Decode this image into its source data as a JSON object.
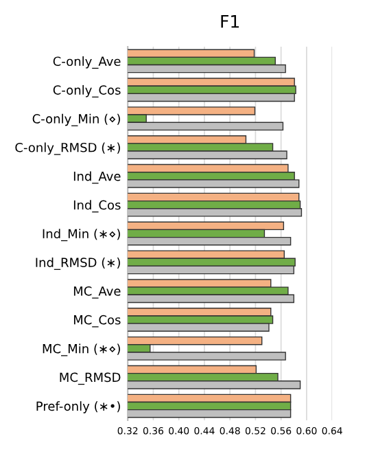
{
  "chart_data": {
    "type": "bar",
    "orientation": "horizontal",
    "title": "F1",
    "categories": [
      "C-only_Ave",
      "C-only_Cos",
      "C-only_Min (⋄)",
      "C-only_RMSD (∗)",
      "Ind_Ave",
      "Ind_Cos",
      "Ind_Min (∗⋄)",
      "Ind_RMSD (∗)",
      "MC_Ave",
      "MC_Cos",
      "MC_Min (∗⋄)",
      "MC_RMSD",
      "Pref-only (∗•)"
    ],
    "series": [
      {
        "color": "#f4b183",
        "values": [
          0.518,
          0.581,
          0.519,
          0.505,
          0.571,
          0.588,
          0.564,
          0.565,
          0.544,
          0.544,
          0.53,
          0.521,
          0.575
        ]
      },
      {
        "color": "#70ad47",
        "values": [
          0.551,
          0.583,
          0.349,
          0.547,
          0.581,
          0.59,
          0.534,
          0.582,
          0.571,
          0.547,
          0.355,
          0.555,
          0.575
        ]
      },
      {
        "color": "#bfbfbf",
        "values": [
          0.567,
          0.581,
          0.563,
          0.569,
          0.588,
          0.592,
          0.575,
          0.58,
          0.58,
          0.541,
          0.567,
          0.59,
          0.575
        ]
      }
    ],
    "xlim": [
      0.32,
      0.64
    ],
    "xticks": [
      {
        "value": 0.32,
        "label": "0.32"
      },
      {
        "value": 0.36,
        "label": "0.36"
      },
      {
        "value": 0.4,
        "label": "0.40"
      },
      {
        "value": 0.44,
        "label": "0.44"
      },
      {
        "value": 0.48,
        "label": "0.48"
      },
      {
        "value": 0.52,
        "label": "0.52"
      },
      {
        "value": 0.56,
        "label": "0.56"
      },
      {
        "value": 0.6,
        "label": "0.60"
      },
      {
        "value": 0.64,
        "label": "0.64"
      }
    ],
    "grid": "x"
  }
}
